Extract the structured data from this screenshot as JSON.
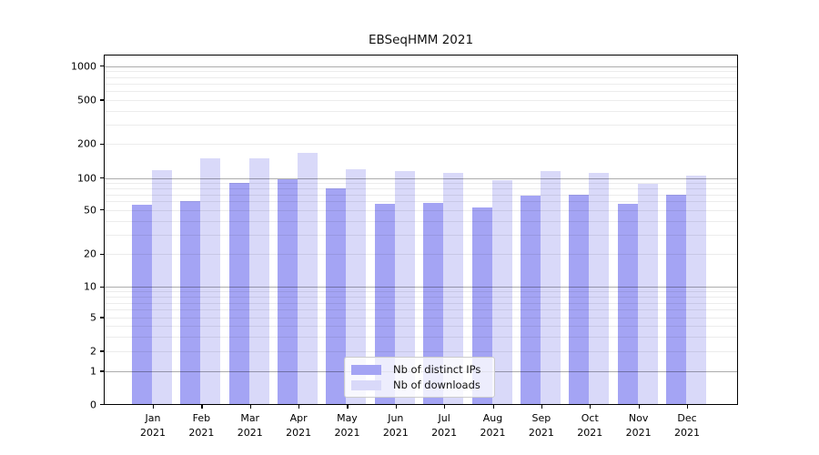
{
  "figure": {
    "title": "EBSeqHMM 2021"
  },
  "chart_data": {
    "type": "bar",
    "title": "EBSeqHMM 2021",
    "categories": [
      "Jan",
      "Feb",
      "Mar",
      "Apr",
      "May",
      "Jun",
      "Jul",
      "Aug",
      "Sep",
      "Oct",
      "Nov",
      "Dec"
    ],
    "category_year": "2021",
    "series": [
      {
        "name": "Nb of distinct IPs",
        "color": "#a4a4f4",
        "values": [
          56,
          60,
          90,
          97,
          79,
          57,
          58,
          53,
          68,
          69,
          57,
          70
        ]
      },
      {
        "name": "Nb of downloads",
        "color": "#d9d9f9",
        "values": [
          118,
          149,
          150,
          167,
          119,
          114,
          111,
          95,
          116,
          111,
          88,
          105
        ]
      }
    ],
    "y_ticks": [
      0,
      1,
      2,
      5,
      10,
      20,
      50,
      100,
      200,
      500,
      1000
    ],
    "y_scale": "log",
    "ylim": [
      0,
      1250
    ],
    "xlabel": "",
    "ylabel": "",
    "grid": true,
    "legend_position": "lower center"
  }
}
